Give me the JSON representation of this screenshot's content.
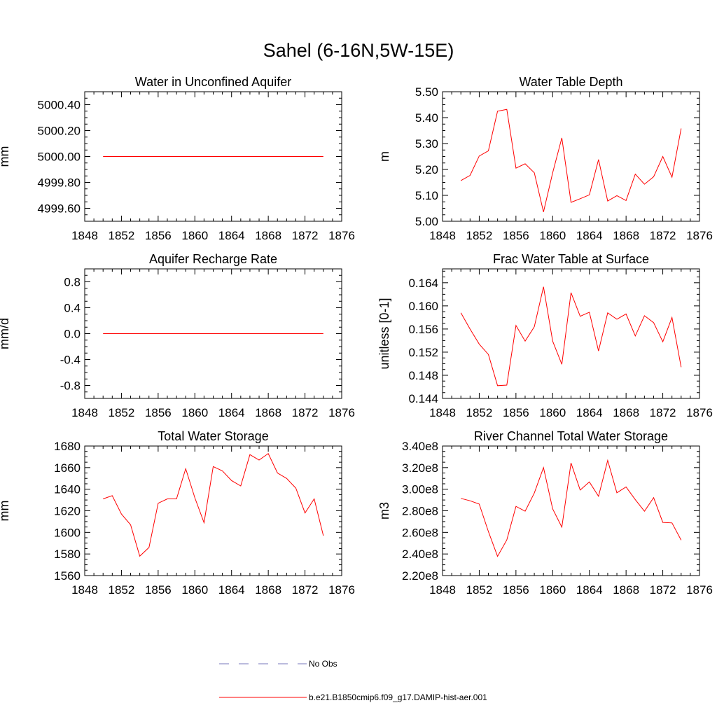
{
  "page": {
    "title": "Sahel (6-16N,5W-15E)"
  },
  "chart_data": [
    {
      "type": "line",
      "title": "Water in Unconfined Aquifer",
      "ylabel": "mm",
      "xlim": [
        1848,
        1876
      ],
      "xticks": [
        1848,
        1852,
        1856,
        1860,
        1864,
        1868,
        1872,
        1876
      ],
      "ylim": [
        4999.5,
        5000.5
      ],
      "yticks": [
        4999.6,
        4999.8,
        5000.0,
        5000.2,
        5000.4
      ],
      "ytick_labels": [
        "4999.60",
        "4999.80",
        "5000.00",
        "5000.20",
        "5000.40"
      ],
      "x": [
        1850,
        1851,
        1852,
        1853,
        1854,
        1855,
        1856,
        1857,
        1858,
        1859,
        1860,
        1861,
        1862,
        1863,
        1864,
        1865,
        1866,
        1867,
        1868,
        1869,
        1870,
        1871,
        1872,
        1873,
        1874
      ],
      "values": [
        5000.0,
        5000.0,
        5000.0,
        5000.0,
        5000.0,
        5000.0,
        5000.0,
        5000.0,
        5000.0,
        5000.0,
        5000.0,
        5000.0,
        5000.0,
        5000.0,
        5000.0,
        5000.0,
        5000.0,
        5000.0,
        5000.0,
        5000.0,
        5000.0,
        5000.0,
        5000.0,
        5000.0,
        5000.0
      ],
      "color": "#ff0000"
    },
    {
      "type": "line",
      "title": "Water Table Depth",
      "ylabel": "m",
      "xlim": [
        1848,
        1876
      ],
      "xticks": [
        1848,
        1852,
        1856,
        1860,
        1864,
        1868,
        1872,
        1876
      ],
      "ylim": [
        5.0,
        5.5
      ],
      "yticks": [
        5.0,
        5.1,
        5.2,
        5.3,
        5.4,
        5.5
      ],
      "ytick_labels": [
        "5.00",
        "5.10",
        "5.20",
        "5.30",
        "5.40",
        "5.50"
      ],
      "x": [
        1850,
        1851,
        1852,
        1853,
        1854,
        1855,
        1856,
        1857,
        1858,
        1859,
        1860,
        1861,
        1862,
        1863,
        1864,
        1865,
        1866,
        1867,
        1868,
        1869,
        1870,
        1871,
        1872,
        1873,
        1874
      ],
      "values": [
        5.157,
        5.177,
        5.252,
        5.272,
        5.425,
        5.432,
        5.205,
        5.222,
        5.187,
        5.036,
        5.187,
        5.322,
        5.073,
        5.087,
        5.102,
        5.238,
        5.078,
        5.099,
        5.08,
        5.182,
        5.143,
        5.172,
        5.25,
        5.17,
        5.358
      ],
      "color": "#ff0000"
    },
    {
      "type": "line",
      "title": "Aquifer Recharge Rate",
      "ylabel": "mm/d",
      "xlim": [
        1848,
        1876
      ],
      "xticks": [
        1848,
        1852,
        1856,
        1860,
        1864,
        1868,
        1872,
        1876
      ],
      "ylim": [
        -1.0,
        1.0
      ],
      "yticks": [
        -0.8,
        -0.4,
        0.0,
        0.4,
        0.8
      ],
      "ytick_labels": [
        "-0.8",
        "-0.4",
        "0.0",
        "0.4",
        "0.8"
      ],
      "x": [
        1850,
        1851,
        1852,
        1853,
        1854,
        1855,
        1856,
        1857,
        1858,
        1859,
        1860,
        1861,
        1862,
        1863,
        1864,
        1865,
        1866,
        1867,
        1868,
        1869,
        1870,
        1871,
        1872,
        1873,
        1874
      ],
      "values": [
        0,
        0,
        0,
        0,
        0,
        0,
        0,
        0,
        0,
        0,
        0,
        0,
        0,
        0,
        0,
        0,
        0,
        0,
        0,
        0,
        0,
        0,
        0,
        0,
        0
      ],
      "color": "#ff0000"
    },
    {
      "type": "line",
      "title": "Frac Water Table at Surface",
      "ylabel": "unitless [0-1]",
      "xlim": [
        1848,
        1876
      ],
      "xticks": [
        1848,
        1852,
        1856,
        1860,
        1864,
        1868,
        1872,
        1876
      ],
      "ylim": [
        0.144,
        0.1664
      ],
      "yticks": [
        0.144,
        0.148,
        0.152,
        0.156,
        0.16,
        0.164
      ],
      "ytick_labels": [
        "0.144",
        "0.148",
        "0.152",
        "0.156",
        "0.160",
        "0.164"
      ],
      "x": [
        1850,
        1851,
        1852,
        1853,
        1854,
        1855,
        1856,
        1857,
        1858,
        1859,
        1860,
        1861,
        1862,
        1863,
        1864,
        1865,
        1866,
        1867,
        1868,
        1869,
        1870,
        1871,
        1872,
        1873,
        1874
      ],
      "values": [
        0.1588,
        0.156,
        0.1534,
        0.1516,
        0.1462,
        0.1463,
        0.1566,
        0.1539,
        0.1564,
        0.1633,
        0.1539,
        0.1499,
        0.1623,
        0.1582,
        0.1589,
        0.1522,
        0.1588,
        0.1577,
        0.1586,
        0.1548,
        0.1583,
        0.1571,
        0.1538,
        0.158,
        0.1494
      ],
      "color": "#ff0000"
    },
    {
      "type": "line",
      "title": "Total Water Storage",
      "ylabel": "mm",
      "xlim": [
        1848,
        1876
      ],
      "xticks": [
        1848,
        1852,
        1856,
        1860,
        1864,
        1868,
        1872,
        1876
      ],
      "ylim": [
        1560,
        1680
      ],
      "yticks": [
        1560,
        1580,
        1600,
        1620,
        1640,
        1660,
        1680
      ],
      "ytick_labels": [
        "1560",
        "1580",
        "1600",
        "1620",
        "1640",
        "1660",
        "1680"
      ],
      "x": [
        1850,
        1851,
        1852,
        1853,
        1854,
        1855,
        1856,
        1857,
        1858,
        1859,
        1860,
        1861,
        1862,
        1863,
        1864,
        1865,
        1866,
        1867,
        1868,
        1869,
        1870,
        1871,
        1872,
        1873,
        1874
      ],
      "values": [
        1631,
        1634,
        1617,
        1607,
        1578,
        1586,
        1627,
        1631,
        1631,
        1659,
        1632,
        1609,
        1661,
        1657,
        1648,
        1643,
        1672,
        1667,
        1673,
        1655,
        1650,
        1641,
        1618,
        1631,
        1597
      ],
      "color": "#ff0000"
    },
    {
      "type": "line",
      "title": "River Channel Total Water Storage",
      "ylabel": "m3",
      "xlim": [
        1848,
        1876
      ],
      "xticks": [
        1848,
        1852,
        1856,
        1860,
        1864,
        1868,
        1872,
        1876
      ],
      "ylim": [
        220000000,
        340000000
      ],
      "yticks": [
        220000000,
        240000000,
        260000000,
        280000000,
        300000000,
        320000000,
        340000000
      ],
      "ytick_labels": [
        "2.20e8",
        "2.40e8",
        "2.60e8",
        "2.80e8",
        "3.00e8",
        "3.20e8",
        "3.40e8"
      ],
      "x": [
        1850,
        1851,
        1852,
        1853,
        1854,
        1855,
        1856,
        1857,
        1858,
        1859,
        1860,
        1861,
        1862,
        1863,
        1864,
        1865,
        1866,
        1867,
        1868,
        1869,
        1870,
        1871,
        1872,
        1873,
        1874
      ],
      "values": [
        291500000,
        289300000,
        286200000,
        260800000,
        237800000,
        253000000,
        284100000,
        279600000,
        296500000,
        320000000,
        281800000,
        264800000,
        324300000,
        299200000,
        306700000,
        293400000,
        326700000,
        296700000,
        302100000,
        290300000,
        279600000,
        292200000,
        269200000,
        268800000,
        252800000
      ],
      "color": "#ff0000"
    }
  ],
  "legend": {
    "placement": "bottom",
    "items": [
      {
        "label": "No Obs",
        "style": "dashed",
        "color": "#7777bb"
      },
      {
        "label": "b.e21.B1850cmip6.f09_g17.DAMIP-hist-aer.001",
        "style": "solid",
        "color": "#ff0000"
      }
    ]
  }
}
